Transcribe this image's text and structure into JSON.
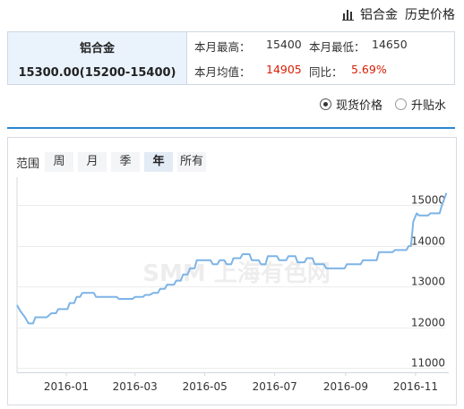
{
  "header": {
    "product_link": "铝合金",
    "history_link": "历史价格",
    "icon": "bar-chart-icon"
  },
  "summary": {
    "name": "铝合金",
    "price": "15300.00(15200-15400)",
    "month_high_label": "本月最高：",
    "month_high_value": "15400",
    "month_low_label": "本月最低：",
    "month_low_value": "14650",
    "month_avg_label": "本月均值：",
    "month_avg_value": "14905",
    "yoy_label": "同比：",
    "yoy_value": "5.69%"
  },
  "price_type": {
    "options": [
      {
        "label": "现货价格",
        "selected": true
      },
      {
        "label": "升贴水",
        "selected": false
      }
    ]
  },
  "range": {
    "label": "范围",
    "buttons": [
      {
        "label": "周",
        "active": false
      },
      {
        "label": "月",
        "active": false
      },
      {
        "label": "季",
        "active": false
      },
      {
        "label": "年",
        "active": true
      },
      {
        "label": "所有",
        "active": false
      }
    ]
  },
  "watermark": "SMM 上海有色网",
  "colors": {
    "line": "#7db4e6",
    "accent": "#2a86d1",
    "up": "#d81e06"
  },
  "chart_data": {
    "type": "line",
    "title": "",
    "xlabel": "",
    "ylabel": "",
    "x_ticks": [
      "2016-01",
      "2016-03",
      "2016-05",
      "2016-07",
      "2016-09",
      "2016-11"
    ],
    "y_ticks": [
      11000,
      12000,
      13000,
      14000,
      15000
    ],
    "ylim": [
      10900,
      15600
    ],
    "xlim": [
      "2015-11-19",
      "2016-11-30"
    ],
    "grid": "horizontal",
    "legend": "none",
    "series": [
      {
        "name": "",
        "points": [
          [
            "2015-11-19",
            12550
          ],
          [
            "2015-11-22",
            12400
          ],
          [
            "2015-11-26",
            12250
          ],
          [
            "2015-11-29",
            12100
          ],
          [
            "2015-12-03",
            12100
          ],
          [
            "2015-12-05",
            12250
          ],
          [
            "2015-12-15",
            12250
          ],
          [
            "2015-12-19",
            12350
          ],
          [
            "2015-12-23",
            12350
          ],
          [
            "2015-12-25",
            12450
          ],
          [
            "2016-01-02",
            12450
          ],
          [
            "2016-01-04",
            12600
          ],
          [
            "2016-01-08",
            12600
          ],
          [
            "2016-01-10",
            12750
          ],
          [
            "2016-01-13",
            12750
          ],
          [
            "2016-01-15",
            12850
          ],
          [
            "2016-01-25",
            12850
          ],
          [
            "2016-01-27",
            12750
          ],
          [
            "2016-02-14",
            12750
          ],
          [
            "2016-02-16",
            12700
          ],
          [
            "2016-02-28",
            12700
          ],
          [
            "2016-03-01",
            12750
          ],
          [
            "2016-03-08",
            12750
          ],
          [
            "2016-03-10",
            12800
          ],
          [
            "2016-03-14",
            12800
          ],
          [
            "2016-03-17",
            12850
          ],
          [
            "2016-03-21",
            12850
          ],
          [
            "2016-03-23",
            12950
          ],
          [
            "2016-03-27",
            12950
          ],
          [
            "2016-03-29",
            13050
          ],
          [
            "2016-04-04",
            13050
          ],
          [
            "2016-04-06",
            13150
          ],
          [
            "2016-04-10",
            13150
          ],
          [
            "2016-04-12",
            13300
          ],
          [
            "2016-04-16",
            13300
          ],
          [
            "2016-04-18",
            13450
          ],
          [
            "2016-04-22",
            13450
          ],
          [
            "2016-04-24",
            13650
          ],
          [
            "2016-05-06",
            13650
          ],
          [
            "2016-05-08",
            13550
          ],
          [
            "2016-05-12",
            13550
          ],
          [
            "2016-05-14",
            13650
          ],
          [
            "2016-05-18",
            13650
          ],
          [
            "2016-05-20",
            13550
          ],
          [
            "2016-05-24",
            13550
          ],
          [
            "2016-05-26",
            13700
          ],
          [
            "2016-06-01",
            13700
          ],
          [
            "2016-06-03",
            13800
          ],
          [
            "2016-06-09",
            13800
          ],
          [
            "2016-06-11",
            13650
          ],
          [
            "2016-06-17",
            13650
          ],
          [
            "2016-06-19",
            13550
          ],
          [
            "2016-06-23",
            13550
          ],
          [
            "2016-06-25",
            13750
          ],
          [
            "2016-07-03",
            13750
          ],
          [
            "2016-07-05",
            13650
          ],
          [
            "2016-07-11",
            13650
          ],
          [
            "2016-07-13",
            13750
          ],
          [
            "2016-07-19",
            13750
          ],
          [
            "2016-07-21",
            13600
          ],
          [
            "2016-07-27",
            13600
          ],
          [
            "2016-07-29",
            13700
          ],
          [
            "2016-08-03",
            13700
          ],
          [
            "2016-08-05",
            13550
          ],
          [
            "2016-08-13",
            13550
          ],
          [
            "2016-08-15",
            13450
          ],
          [
            "2016-08-31",
            13450
          ],
          [
            "2016-09-02",
            13550
          ],
          [
            "2016-09-14",
            13550
          ],
          [
            "2016-09-16",
            13650
          ],
          [
            "2016-09-28",
            13650
          ],
          [
            "2016-09-30",
            13850
          ],
          [
            "2016-10-12",
            13850
          ],
          [
            "2016-10-14",
            13900
          ],
          [
            "2016-10-24",
            13900
          ],
          [
            "2016-10-26",
            14000
          ],
          [
            "2016-10-28",
            14000
          ],
          [
            "2016-10-30",
            14600
          ],
          [
            "2016-11-02",
            14800
          ],
          [
            "2016-11-04",
            14750
          ],
          [
            "2016-11-12",
            14750
          ],
          [
            "2016-11-14",
            14800
          ],
          [
            "2016-11-22",
            14800
          ],
          [
            "2016-11-24",
            15000
          ],
          [
            "2016-11-28",
            15300
          ]
        ]
      }
    ]
  }
}
